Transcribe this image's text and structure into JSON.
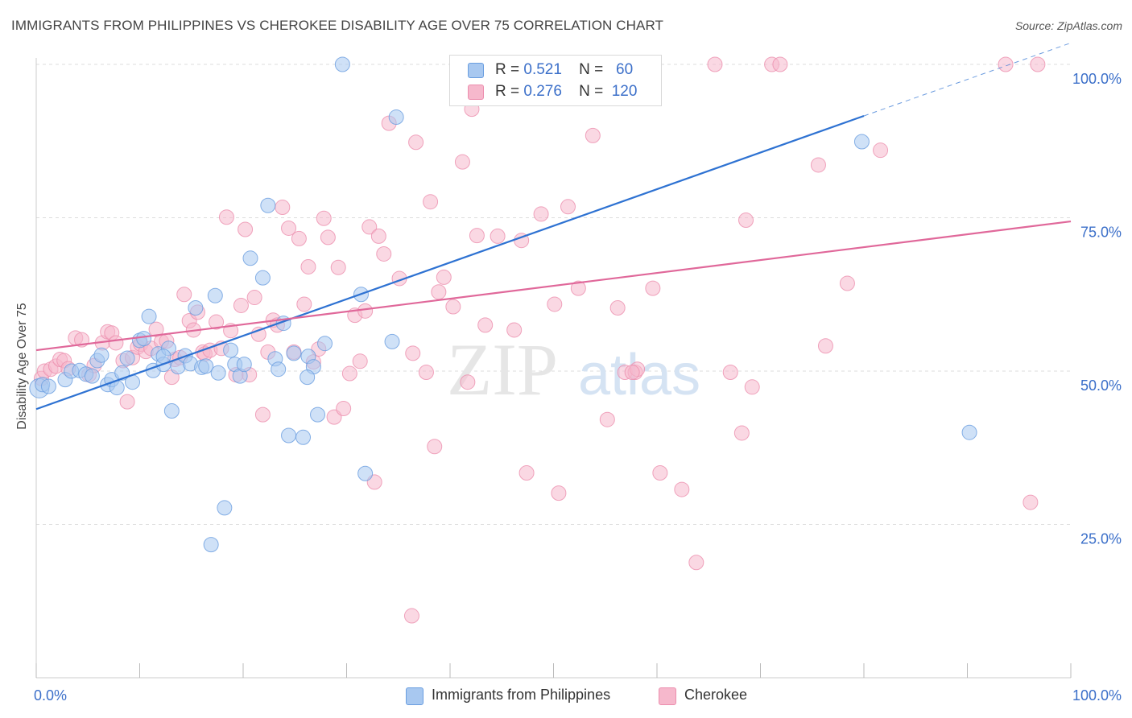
{
  "title": "IMMIGRANTS FROM PHILIPPINES VS CHEROKEE DISABILITY AGE OVER 75 CORRELATION CHART",
  "source": "Source: ZipAtlas.com",
  "watermark": {
    "zip": "ZIP",
    "atlas": "atlas"
  },
  "legend": {
    "series1": {
      "r_label": "R =",
      "r_value": "0.521",
      "n_label": "N =",
      "n_value": "60"
    },
    "series2": {
      "r_label": "R =",
      "r_value": "0.276",
      "n_label": "N =",
      "n_value": "120"
    }
  },
  "bottom_legend": {
    "series1": "Immigrants from Philippines",
    "series2": "Cherokee"
  },
  "colors": {
    "blue_fill": "#a8c8f0",
    "blue_stroke": "#6a9ee0",
    "blue_line": "#2e72d2",
    "pink_fill": "#f6b8cc",
    "pink_stroke": "#ec8eae",
    "pink_line": "#e0689a",
    "axis_text": "#3b6fc9",
    "grid": "#dddddd"
  },
  "chart_data": {
    "type": "scatter",
    "title": "IMMIGRANTS FROM PHILIPPINES VS CHEROKEE DISABILITY AGE OVER 75 CORRELATION CHART",
    "xlabel": "",
    "ylabel": "Disability Age Over 75",
    "xlim": [
      0,
      100
    ],
    "ylim": [
      0,
      104
    ],
    "x_tick_labels": [
      "0.0%",
      "100.0%"
    ],
    "y_ticks": [
      25,
      50,
      75,
      100
    ],
    "y_tick_labels": [
      "25.0%",
      "50.0%",
      "75.0%",
      "100.0%"
    ],
    "series": [
      {
        "name": "Immigrants from Philippines",
        "r": 0.521,
        "n": 60,
        "trend": {
          "x0": 0,
          "y0": 43.8,
          "x1": 80,
          "y1": 91.6,
          "dash_x1": 100,
          "dash_y1": 103.5
        },
        "points": [
          [
            0.3,
            47.2
          ],
          [
            0.6,
            47.8
          ],
          [
            1.2,
            47.5
          ],
          [
            2.8,
            48.6
          ],
          [
            3.4,
            50
          ],
          [
            4.2,
            50.1
          ],
          [
            4.8,
            49.5
          ],
          [
            5.4,
            49.2
          ],
          [
            5.9,
            51.7
          ],
          [
            6.3,
            52.6
          ],
          [
            6.9,
            47.8
          ],
          [
            7.3,
            48.6
          ],
          [
            7.8,
            47.3
          ],
          [
            8.3,
            49.7
          ],
          [
            8.8,
            52.1
          ],
          [
            9.3,
            48.2
          ],
          [
            10,
            55
          ],
          [
            10.4,
            55.3
          ],
          [
            10.9,
            58.9
          ],
          [
            11.3,
            50.1
          ],
          [
            11.8,
            52.8
          ],
          [
            12.3,
            51.1
          ],
          [
            12.8,
            53.7
          ],
          [
            13.1,
            43.5
          ],
          [
            13.7,
            50.7
          ],
          [
            14.4,
            52.5
          ],
          [
            14.9,
            51.2
          ],
          [
            15.4,
            60.3
          ],
          [
            16,
            50.6
          ],
          [
            16.4,
            50.8
          ],
          [
            16.9,
            21.7
          ],
          [
            17.3,
            62.3
          ],
          [
            17.6,
            49.7
          ],
          [
            18.2,
            27.7
          ],
          [
            18.8,
            53.4
          ],
          [
            19.2,
            51.1
          ],
          [
            19.7,
            49.2
          ],
          [
            20.1,
            51.1
          ],
          [
            20.7,
            68.4
          ],
          [
            21.9,
            65.2
          ],
          [
            22.4,
            77
          ],
          [
            23.1,
            52
          ],
          [
            23.4,
            50.3
          ],
          [
            23.9,
            57.8
          ],
          [
            24.4,
            39.5
          ],
          [
            24.9,
            52.9
          ],
          [
            25.8,
            39.2
          ],
          [
            26.3,
            52.4
          ],
          [
            26.8,
            50.7
          ],
          [
            27.2,
            42.9
          ],
          [
            27.9,
            54.5
          ],
          [
            29.6,
            100
          ],
          [
            31.4,
            62.5
          ],
          [
            31.8,
            33.3
          ],
          [
            34.4,
            54.8
          ],
          [
            34.8,
            91.4
          ],
          [
            79.8,
            87.4
          ],
          [
            90.2,
            40
          ],
          [
            26.2,
            49
          ],
          [
            12.3,
            52.4
          ]
        ]
      },
      {
        "name": "Cherokee",
        "r": 0.276,
        "n": 120,
        "trend": {
          "x0": 0,
          "y0": 53.4,
          "x1": 100,
          "y1": 74.4
        },
        "points": [
          [
            0.5,
            48.8
          ],
          [
            0.8,
            50
          ],
          [
            1.4,
            50.3
          ],
          [
            1.9,
            50.8
          ],
          [
            2.3,
            51.9
          ],
          [
            2.7,
            51.7
          ],
          [
            3.1,
            50.4
          ],
          [
            3.8,
            55.4
          ],
          [
            4.4,
            55.1
          ],
          [
            5.1,
            49.4
          ],
          [
            5.6,
            50.9
          ],
          [
            6.4,
            54.6
          ],
          [
            6.9,
            56.4
          ],
          [
            7.3,
            56.2
          ],
          [
            7.7,
            54.6
          ],
          [
            8.4,
            51.7
          ],
          [
            8.8,
            45
          ],
          [
            9.3,
            52.2
          ],
          [
            9.8,
            53.9
          ],
          [
            10.1,
            54.4
          ],
          [
            10.6,
            53.2
          ],
          [
            11.1,
            53.7
          ],
          [
            11.6,
            56.8
          ],
          [
            12.1,
            54.8
          ],
          [
            12.6,
            54.9
          ],
          [
            13.1,
            49
          ],
          [
            13.4,
            51.9
          ],
          [
            13.9,
            52.2
          ],
          [
            14.3,
            62.5
          ],
          [
            14.8,
            58.2
          ],
          [
            15.2,
            56.7
          ],
          [
            15.6,
            59.6
          ],
          [
            16.1,
            53.1
          ],
          [
            16.3,
            52.8
          ],
          [
            16.8,
            53.4
          ],
          [
            17.4,
            58
          ],
          [
            17.9,
            53.7
          ],
          [
            18.4,
            75.1
          ],
          [
            18.8,
            56.6
          ],
          [
            19.3,
            49.4
          ],
          [
            19.8,
            60.7
          ],
          [
            20.2,
            73.1
          ],
          [
            20.6,
            49.4
          ],
          [
            21.1,
            62
          ],
          [
            21.5,
            56
          ],
          [
            21.9,
            42.9
          ],
          [
            22.4,
            53.1
          ],
          [
            22.9,
            58.3
          ],
          [
            23.3,
            57.5
          ],
          [
            23.8,
            76.7
          ],
          [
            24.4,
            73.3
          ],
          [
            24.9,
            53.1
          ],
          [
            25.4,
            71.6
          ],
          [
            25.9,
            60.9
          ],
          [
            26.3,
            67
          ],
          [
            26.8,
            51.5
          ],
          [
            27.3,
            53.6
          ],
          [
            27.8,
            74.9
          ],
          [
            28.2,
            71.8
          ],
          [
            28.8,
            42.5
          ],
          [
            29.2,
            66.9
          ],
          [
            29.7,
            43.9
          ],
          [
            30.3,
            49.6
          ],
          [
            30.8,
            59.1
          ],
          [
            31.3,
            51.6
          ],
          [
            31.8,
            59.8
          ],
          [
            32.2,
            73.5
          ],
          [
            32.7,
            31.9
          ],
          [
            33.1,
            72
          ],
          [
            33.6,
            69.1
          ],
          [
            34.1,
            90.4
          ],
          [
            35.1,
            65.1
          ],
          [
            36.4,
            52.9
          ],
          [
            36.3,
            10.1
          ],
          [
            36.7,
            87.3
          ],
          [
            37.7,
            49.8
          ],
          [
            38.1,
            77.6
          ],
          [
            38.5,
            37.7
          ],
          [
            38.9,
            62.9
          ],
          [
            39.4,
            65.3
          ],
          [
            40.3,
            60.5
          ],
          [
            41.2,
            84.1
          ],
          [
            41.7,
            48.2
          ],
          [
            42.1,
            92.7
          ],
          [
            42.6,
            72.1
          ],
          [
            43.4,
            57.5
          ],
          [
            44.6,
            72
          ],
          [
            46.2,
            56.7
          ],
          [
            46.9,
            71.3
          ],
          [
            47.4,
            33.4
          ],
          [
            48.8,
            75.6
          ],
          [
            50.1,
            60.9
          ],
          [
            50.5,
            30.1
          ],
          [
            51.4,
            76.8
          ],
          [
            52.4,
            63.5
          ],
          [
            53.8,
            88.4
          ],
          [
            55.2,
            42.1
          ],
          [
            56.2,
            60.3
          ],
          [
            56.9,
            49.8
          ],
          [
            57.9,
            49.8
          ],
          [
            58.1,
            50.3
          ],
          [
            59.6,
            63.5
          ],
          [
            60.3,
            33.4
          ],
          [
            62.4,
            30.7
          ],
          [
            63.8,
            18.8
          ],
          [
            65.6,
            100
          ],
          [
            67.1,
            49.8
          ],
          [
            68.2,
            39.9
          ],
          [
            68.6,
            74.6
          ],
          [
            69.2,
            47.4
          ],
          [
            71.1,
            100
          ],
          [
            71.9,
            100
          ],
          [
            75.6,
            83.6
          ],
          [
            76.3,
            54.1
          ],
          [
            78.4,
            64.3
          ],
          [
            81.6,
            86
          ],
          [
            93.7,
            100
          ],
          [
            96.1,
            28.6
          ],
          [
            96.8,
            100
          ],
          [
            57.6,
            49.8
          ]
        ]
      }
    ],
    "legend_position": "top-center"
  }
}
